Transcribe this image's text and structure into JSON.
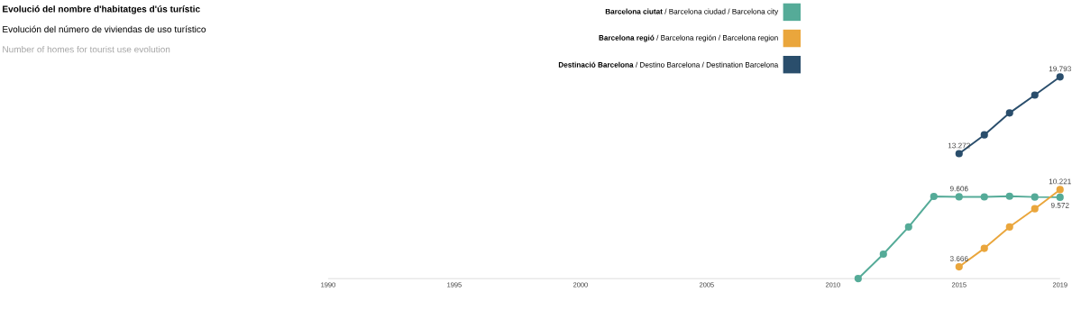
{
  "chart_data": {
    "type": "line",
    "title": "Evolució del nombre d'habitatges d'ús turístic",
    "subtitle": "Evolución del número de viviendas de uso turístico",
    "annotations": [
      "Number of homes for tourist use evolution"
    ],
    "x": [
      2011,
      2012,
      2013,
      2014,
      2015,
      2016,
      2017,
      2018,
      2019
    ],
    "xlim": [
      1990,
      2019
    ],
    "xticks": [
      1990,
      1995,
      2000,
      2005,
      2010,
      2015,
      2019
    ],
    "legend": "top right",
    "marker": "circle",
    "line_style": "solid",
    "grid": false,
    "series": [
      {
        "name": "**Barcelona ciutat** / Barcelona ciudad / Barcelona city",
        "color": "#55ab98",
        "values": [
          2660,
          4740,
          7050,
          9640,
          9606,
          9600,
          9660,
          9590,
          9572
        ],
        "value_labels": [
          null,
          null,
          null,
          null,
          "9.606",
          null,
          null,
          null,
          "9.572"
        ]
      },
      {
        "name": "**Barcelona regió** / Barcelona región / Barcelona region",
        "color": "#eaa63c",
        "values": [
          null,
          null,
          null,
          null,
          3666,
          5230,
          7050,
          8590,
          10221
        ],
        "value_labels": [
          null,
          null,
          null,
          null,
          "3.666",
          null,
          null,
          null,
          "10.221"
        ]
      },
      {
        "name": "**Destinació Barcelona** / Destino Barcelona / Destination Barcelona",
        "color": "#2a4e6c",
        "values": [
          null,
          null,
          null,
          null,
          13272,
          14870,
          16730,
          18250,
          19793
        ],
        "value_labels": [
          null,
          null,
          null,
          null,
          "13.272",
          null,
          null,
          null,
          "19.793"
        ]
      }
    ]
  }
}
